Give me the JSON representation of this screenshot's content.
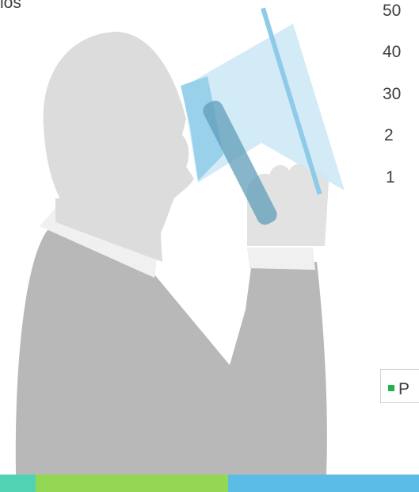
{
  "title_fragment": "ios",
  "side_labels": [
    "50",
    "40",
    "30",
    "2",
    "1"
  ],
  "legend": {
    "label": "P",
    "color": "#22b14c"
  }
}
